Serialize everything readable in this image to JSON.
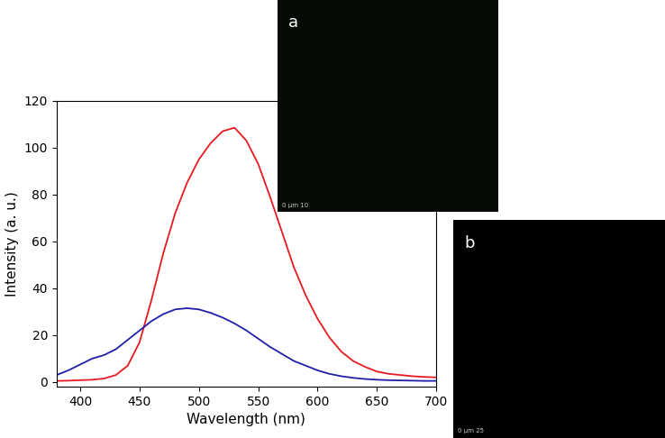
{
  "chart_data": {
    "type": "line",
    "x_label": "Wavelength (nm)",
    "y_label": "Intensity (a. u.)",
    "x": [
      380,
      390,
      400,
      410,
      420,
      430,
      440,
      450,
      460,
      470,
      480,
      490,
      500,
      510,
      520,
      530,
      540,
      550,
      560,
      570,
      580,
      590,
      600,
      610,
      620,
      630,
      640,
      650,
      660,
      670,
      680,
      690,
      700
    ],
    "series": [
      {
        "color": "#e8191f",
        "values": [
          0.5,
          0.6,
          0.8,
          1.0,
          1.5,
          3,
          7,
          17,
          35,
          55,
          72,
          85,
          95,
          102,
          107,
          108.5,
          103,
          93,
          79,
          64,
          49,
          37,
          27,
          19,
          13,
          9,
          6.5,
          4.5,
          3.5,
          3,
          2.5,
          2.2,
          2
        ]
      },
      {
        "color": "#1f1fa8",
        "values": [
          3,
          5,
          7.5,
          10,
          11.5,
          14,
          18,
          22,
          26,
          29,
          31,
          31.5,
          31,
          29.5,
          27.5,
          25,
          22,
          18.5,
          15,
          12,
          9,
          7,
          5,
          3.5,
          2.5,
          1.8,
          1.3,
          1,
          0.8,
          0.7,
          0.6,
          0.5,
          0.5
        ]
      }
    ],
    "xlim": [
      380,
      700
    ],
    "xticks": [
      400,
      450,
      500,
      550,
      600,
      650,
      700
    ],
    "ylim": [
      -2,
      120
    ],
    "yticks": [
      0,
      20,
      40,
      60,
      80,
      100,
      120
    ]
  },
  "insets": [
    {
      "label": "a",
      "scale_bar": "0 μm 10"
    },
    {
      "label": "b",
      "scale_bar": "0 μm 25"
    }
  ]
}
